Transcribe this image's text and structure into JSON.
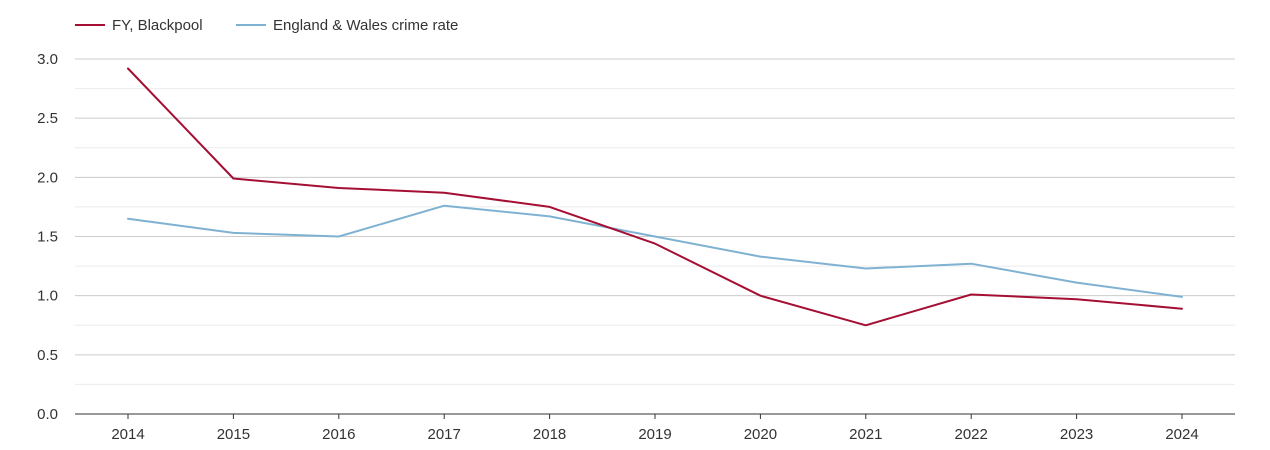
{
  "chart_data": {
    "type": "line",
    "title": "",
    "xlabel": "",
    "ylabel": "",
    "ylim": [
      0,
      3.0
    ],
    "yticks": [
      "0.0",
      "0.5",
      "1.0",
      "1.5",
      "2.0",
      "2.5",
      "3.0"
    ],
    "categories": [
      "2014",
      "2015",
      "2016",
      "2017",
      "2018",
      "2019",
      "2020",
      "2021",
      "2022",
      "2023",
      "2024"
    ],
    "legend_position": "top-left",
    "grid": true,
    "series": [
      {
        "name": "FY, Blackpool",
        "color": "#a50f34",
        "values": [
          2.92,
          1.99,
          1.91,
          1.87,
          1.75,
          1.44,
          1.0,
          0.75,
          1.01,
          0.97,
          0.89
        ]
      },
      {
        "name": "England & Wales crime rate",
        "color": "#7fb2d2",
        "values": [
          1.65,
          1.53,
          1.5,
          1.76,
          1.67,
          1.5,
          1.33,
          1.23,
          1.27,
          1.11,
          0.99
        ]
      }
    ]
  }
}
